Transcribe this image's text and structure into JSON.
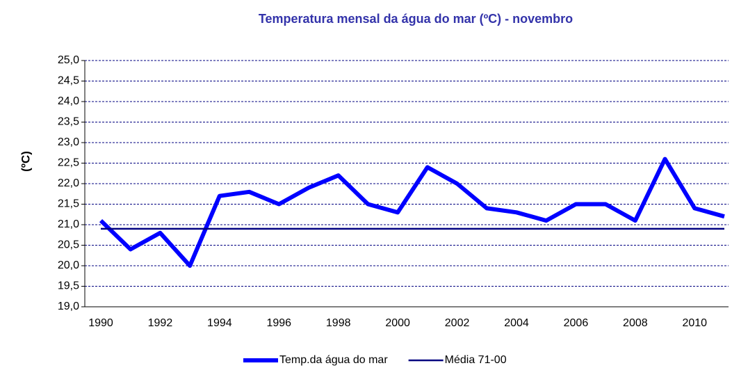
{
  "chart_data": {
    "type": "line",
    "title": "Temperatura mensal da água do mar (ºC)  - novembro",
    "y_label": "(ºC)",
    "categories": [
      "1990",
      null,
      "1992",
      null,
      "1994",
      null,
      "1996",
      null,
      "1998",
      null,
      "2000",
      null,
      "2002",
      null,
      "2004",
      null,
      "2006",
      null,
      "2008",
      null,
      "2010",
      null
    ],
    "series": [
      {
        "name": "Temp.da água do mar",
        "color": "#0000ff",
        "width": 6,
        "values": [
          21.1,
          20.4,
          20.8,
          20.0,
          21.7,
          21.8,
          21.5,
          21.9,
          22.2,
          21.5,
          21.3,
          22.4,
          22.0,
          21.4,
          21.3,
          21.1,
          21.5,
          21.5,
          21.1,
          22.6,
          21.4,
          21.2
        ]
      },
      {
        "name": "Média 71-00",
        "color": "#000080",
        "width": 2.5,
        "values": [
          20.9,
          20.9,
          20.9,
          20.9,
          20.9,
          20.9,
          20.9,
          20.9,
          20.9,
          20.9,
          20.9,
          20.9,
          20.9,
          20.9,
          20.9,
          20.9,
          20.9,
          20.9,
          20.9,
          20.9,
          20.9,
          20.9
        ]
      }
    ],
    "ylim": [
      19,
      25
    ],
    "yticks": [
      {
        "value": 19,
        "label": "19,0"
      },
      {
        "value": 19.5,
        "label": "19,5"
      },
      {
        "value": 20,
        "label": "20,0"
      },
      {
        "value": 20.5,
        "label": "20,5"
      },
      {
        "value": 21,
        "label": "21,0"
      },
      {
        "value": 21.5,
        "label": "21,5"
      },
      {
        "value": 22,
        "label": "22,0"
      },
      {
        "value": 22.5,
        "label": "22,5"
      },
      {
        "value": 23,
        "label": "23,0"
      },
      {
        "value": 23.5,
        "label": "23,5"
      },
      {
        "value": 24,
        "label": "24,0"
      },
      {
        "value": 24.5,
        "label": "24,5"
      },
      {
        "value": 25,
        "label": "25,0"
      }
    ],
    "grid": true,
    "legend": "bottom"
  }
}
